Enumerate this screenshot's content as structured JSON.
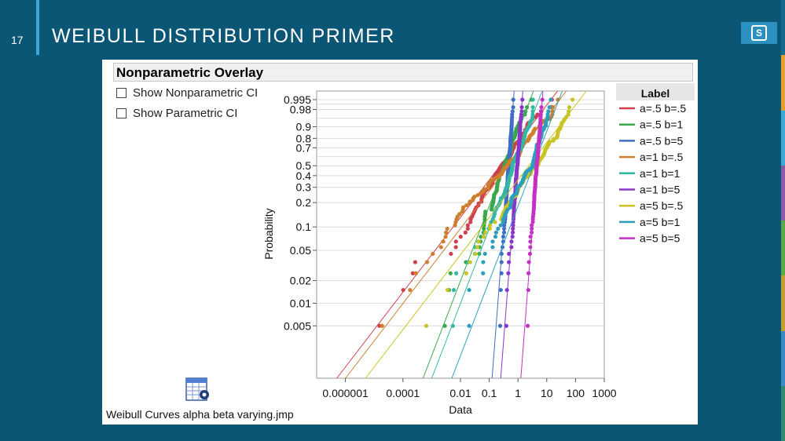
{
  "slide": {
    "page_number": "17",
    "title": "WEIBULL DISTRIBUTION PRIMER"
  },
  "panel": {
    "title": "Nonparametric Overlay",
    "options": [
      {
        "label": "Show Nonparametric CI",
        "checked": false
      },
      {
        "label": "Show Parametric CI",
        "checked": false
      }
    ],
    "file_label": "Weibull Curves alpha beta varying.jmp",
    "file_icon": "jmp-table-file-icon"
  },
  "chart_data": {
    "type": "scatter",
    "xlabel": "Data",
    "ylabel": "Probability",
    "x_scale": "log",
    "y_scale": "weibull-probability",
    "xlim": [
      1e-07,
      1000
    ],
    "ylim": [
      0.001,
      0.999
    ],
    "x_ticks": [
      "0.000001",
      "0.0001",
      "0.01",
      "0.1",
      "1",
      "10",
      "100",
      "1000"
    ],
    "y_ticks": [
      "0.995",
      "0.98",
      "0.9",
      "0.8",
      "0.7",
      "0.5",
      "0.4",
      "0.3",
      "0.2",
      "0.1",
      "0.05",
      "0.02",
      "0.01",
      "0.005"
    ],
    "grid": true,
    "legend_title": "Label",
    "legend_position": "right",
    "series": [
      {
        "name": "a=.5 b=.5",
        "alpha": 0.5,
        "beta": 0.5,
        "color": "#d0404c"
      },
      {
        "name": "a=.5 b=1",
        "alpha": 0.5,
        "beta": 1,
        "color": "#3aa84a"
      },
      {
        "name": "a=.5 b=5",
        "alpha": 0.5,
        "beta": 5,
        "color": "#3f6fc4"
      },
      {
        "name": "a=1 b=.5",
        "alpha": 1,
        "beta": 0.5,
        "color": "#cd7f2e"
      },
      {
        "name": "a=1 b=1",
        "alpha": 1,
        "beta": 1,
        "color": "#34b8a4"
      },
      {
        "name": "a=1 b=5",
        "alpha": 1,
        "beta": 5,
        "color": "#8a35c8"
      },
      {
        "name": "a=5 b=.5",
        "alpha": 5,
        "beta": 0.5,
        "color": "#c8c426"
      },
      {
        "name": "a=5 b=1",
        "alpha": 5,
        "beta": 1,
        "color": "#2d9fbc"
      },
      {
        "name": "a=5 b=5",
        "alpha": 5,
        "beta": 5,
        "color": "#c431c4"
      }
    ],
    "points_per_series": 100
  },
  "colors": {
    "slide_background": "#0b5575",
    "accent": "#3aa8d8",
    "side_stripe": [
      "#0f6a8e",
      "#e2a12a",
      "#3aa8d8",
      "#8a5aa8",
      "#5aa84a",
      "#c0a030",
      "#3a8ac8",
      "#2f8a70"
    ]
  }
}
